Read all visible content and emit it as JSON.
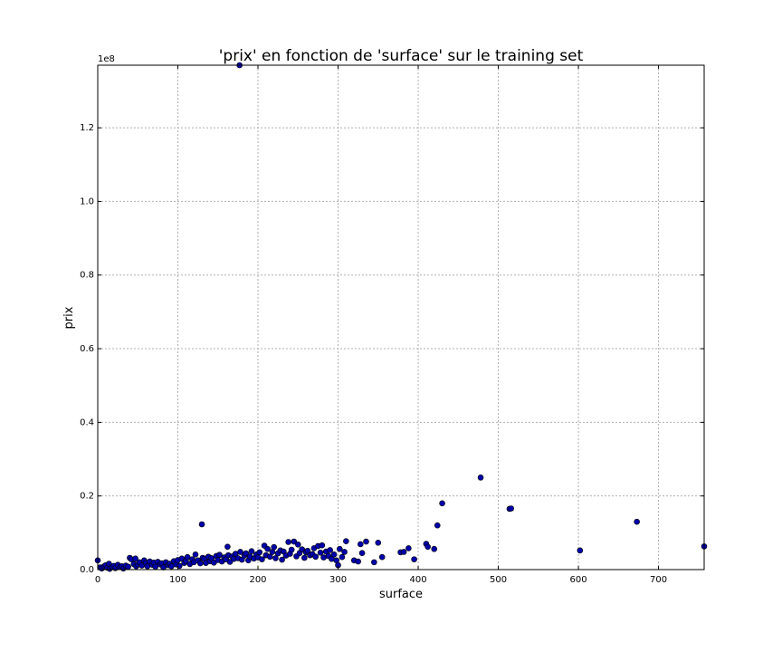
{
  "chart_data": {
    "type": "scatter",
    "title": "'prix' en fonction de 'surface' sur le training set",
    "xlabel": "surface",
    "ylabel": "prix",
    "xlim": [
      0,
      757
    ],
    "ylim": [
      0,
      137000000
    ],
    "xticks": [
      0,
      100,
      200,
      300,
      400,
      500,
      600,
      700
    ],
    "yticks": [
      0,
      20000000,
      40000000,
      60000000,
      80000000,
      100000000,
      120000000
    ],
    "ytick_labels": [
      "0.0",
      "0.2",
      "0.4",
      "0.6",
      "0.8",
      "1.0",
      "1.2"
    ],
    "y_offset_label": "1e8",
    "grid": true,
    "marker_color": "#0000aa",
    "points": [
      [
        0,
        2500000
      ],
      [
        3,
        600000
      ],
      [
        5,
        300000
      ],
      [
        8,
        900000
      ],
      [
        10,
        1200000
      ],
      [
        12,
        500000
      ],
      [
        14,
        1600000
      ],
      [
        15,
        200000
      ],
      [
        18,
        800000
      ],
      [
        20,
        1000000
      ],
      [
        22,
        400000
      ],
      [
        25,
        1300000
      ],
      [
        28,
        700000
      ],
      [
        30,
        900000
      ],
      [
        32,
        300000
      ],
      [
        35,
        1100000
      ],
      [
        38,
        800000
      ],
      [
        40,
        3200000
      ],
      [
        42,
        2800000
      ],
      [
        45,
        1500000
      ],
      [
        47,
        3000000
      ],
      [
        48,
        900000
      ],
      [
        50,
        1400000
      ],
      [
        52,
        2000000
      ],
      [
        55,
        1100000
      ],
      [
        58,
        2500000
      ],
      [
        60,
        1800000
      ],
      [
        62,
        900000
      ],
      [
        65,
        2200000
      ],
      [
        68,
        1300000
      ],
      [
        70,
        1900000
      ],
      [
        72,
        800000
      ],
      [
        75,
        2100000
      ],
      [
        78,
        1400000
      ],
      [
        80,
        1700000
      ],
      [
        82,
        600000
      ],
      [
        85,
        2000000
      ],
      [
        88,
        1200000
      ],
      [
        90,
        1600000
      ],
      [
        92,
        900000
      ],
      [
        95,
        2300000
      ],
      [
        98,
        1400000
      ],
      [
        100,
        2600000
      ],
      [
        102,
        1000000
      ],
      [
        105,
        3000000
      ],
      [
        108,
        1800000
      ],
      [
        110,
        2400000
      ],
      [
        112,
        3400000
      ],
      [
        115,
        1500000
      ],
      [
        118,
        2800000
      ],
      [
        120,
        2000000
      ],
      [
        122,
        4100000
      ],
      [
        125,
        2500000
      ],
      [
        128,
        1700000
      ],
      [
        130,
        12300000
      ],
      [
        131,
        3200000
      ],
      [
        133,
        2900000
      ],
      [
        135,
        1800000
      ],
      [
        138,
        3500000
      ],
      [
        140,
        2300000
      ],
      [
        142,
        3100000
      ],
      [
        145,
        1900000
      ],
      [
        148,
        3700000
      ],
      [
        150,
        2600000
      ],
      [
        152,
        4000000
      ],
      [
        155,
        2200000
      ],
      [
        158,
        3300000
      ],
      [
        160,
        2800000
      ],
      [
        162,
        6200000
      ],
      [
        163,
        3900000
      ],
      [
        165,
        2100000
      ],
      [
        168,
        3600000
      ],
      [
        170,
        2900000
      ],
      [
        172,
        4300000
      ],
      [
        175,
        3100000
      ],
      [
        177,
        137000000
      ],
      [
        178,
        4800000
      ],
      [
        180,
        2700000
      ],
      [
        183,
        3800000
      ],
      [
        185,
        4400000
      ],
      [
        188,
        2500000
      ],
      [
        190,
        3600000
      ],
      [
        192,
        5000000
      ],
      [
        195,
        3000000
      ],
      [
        198,
        4100000
      ],
      [
        200,
        3300000
      ],
      [
        202,
        4700000
      ],
      [
        205,
        2800000
      ],
      [
        208,
        6500000
      ],
      [
        210,
        3900000
      ],
      [
        212,
        5600000
      ],
      [
        215,
        3500000
      ],
      [
        218,
        4800000
      ],
      [
        220,
        6100000
      ],
      [
        222,
        3100000
      ],
      [
        225,
        4400000
      ],
      [
        228,
        5200000
      ],
      [
        230,
        2700000
      ],
      [
        232,
        4900000
      ],
      [
        235,
        3800000
      ],
      [
        238,
        7500000
      ],
      [
        240,
        4300000
      ],
      [
        242,
        5400000
      ],
      [
        245,
        7600000
      ],
      [
        248,
        3600000
      ],
      [
        250,
        6800000
      ],
      [
        252,
        4500000
      ],
      [
        255,
        5500000
      ],
      [
        258,
        3200000
      ],
      [
        260,
        4700000
      ],
      [
        262,
        5100000
      ],
      [
        265,
        3900000
      ],
      [
        268,
        4200000
      ],
      [
        270,
        5800000
      ],
      [
        272,
        3500000
      ],
      [
        275,
        6400000
      ],
      [
        278,
        4600000
      ],
      [
        280,
        6600000
      ],
      [
        282,
        3300000
      ],
      [
        285,
        4900000
      ],
      [
        288,
        3700000
      ],
      [
        290,
        5300000
      ],
      [
        292,
        2900000
      ],
      [
        295,
        4100000
      ],
      [
        298,
        2500000
      ],
      [
        300,
        1200000
      ],
      [
        302,
        5600000
      ],
      [
        305,
        3400000
      ],
      [
        308,
        4800000
      ],
      [
        310,
        7700000
      ],
      [
        320,
        2500000
      ],
      [
        325,
        2200000
      ],
      [
        328,
        6900000
      ],
      [
        330,
        4500000
      ],
      [
        335,
        7600000
      ],
      [
        345,
        2000000
      ],
      [
        350,
        7300000
      ],
      [
        355,
        3400000
      ],
      [
        378,
        4700000
      ],
      [
        382,
        4800000
      ],
      [
        388,
        5800000
      ],
      [
        395,
        2800000
      ],
      [
        410,
        7000000
      ],
      [
        412,
        6200000
      ],
      [
        420,
        5600000
      ],
      [
        424,
        12000000
      ],
      [
        430,
        18000000
      ],
      [
        478,
        25000000
      ],
      [
        514,
        16500000
      ],
      [
        516,
        16600000
      ],
      [
        602,
        5200000
      ],
      [
        673,
        13000000
      ],
      [
        757,
        6300000
      ]
    ]
  }
}
